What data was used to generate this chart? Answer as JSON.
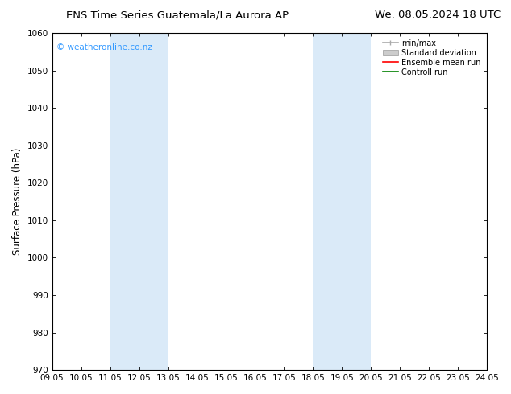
{
  "title_left": "ENS Time Series Guatemala/La Aurora AP",
  "title_right": "We. 08.05.2024 18 UTC",
  "ylabel": "Surface Pressure (hPa)",
  "ylim": [
    970,
    1060
  ],
  "yticks": [
    970,
    980,
    990,
    1000,
    1010,
    1020,
    1030,
    1040,
    1050,
    1060
  ],
  "xlim": [
    9.05,
    24.05
  ],
  "xtick_labels": [
    "09.05",
    "10.05",
    "11.05",
    "12.05",
    "13.05",
    "14.05",
    "15.05",
    "16.05",
    "17.05",
    "18.05",
    "19.05",
    "20.05",
    "21.05",
    "22.05",
    "23.05",
    "24.05"
  ],
  "xtick_positions": [
    9.05,
    10.05,
    11.05,
    12.05,
    13.05,
    14.05,
    15.05,
    16.05,
    17.05,
    18.05,
    19.05,
    20.05,
    21.05,
    22.05,
    23.05,
    24.05
  ],
  "shaded_bands": [
    {
      "xmin": 11.05,
      "xmax": 13.05
    },
    {
      "xmin": 18.05,
      "xmax": 20.05
    }
  ],
  "band_color": "#daeaf8",
  "background_color": "#ffffff",
  "watermark": "© weatheronline.co.nz",
  "watermark_color": "#3399ff",
  "legend_items": [
    {
      "label": "min/max",
      "color": "#aaaaaa",
      "lw": 1.2,
      "style": "minmax"
    },
    {
      "label": "Standard deviation",
      "color": "#cccccc",
      "lw": 5,
      "style": "std"
    },
    {
      "label": "Ensemble mean run",
      "color": "#ff0000",
      "lw": 1.2,
      "style": "line"
    },
    {
      "label": "Controll run",
      "color": "#008000",
      "lw": 1.2,
      "style": "line"
    }
  ],
  "grid_color": "#cccccc",
  "tick_color": "#000000",
  "font_family": "DejaVu Sans",
  "title_fontsize": 9.5,
  "axis_fontsize": 8.5,
  "tick_fontsize": 7.5,
  "legend_fontsize": 7,
  "watermark_fontsize": 7.5
}
